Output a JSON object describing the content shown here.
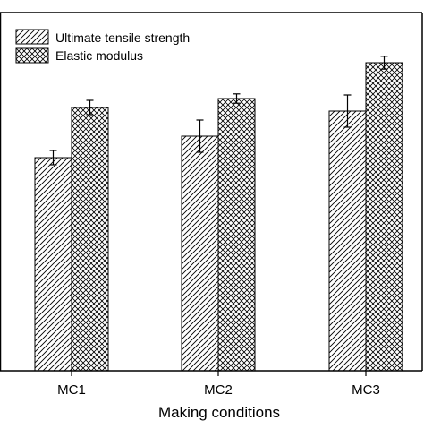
{
  "chart_data": {
    "type": "bar",
    "categories": [
      "MC1",
      "MC2",
      "MC3"
    ],
    "series": [
      {
        "name": "Ultimate tensile strength",
        "values": [
          59.5,
          65.5,
          72.5
        ],
        "error": [
          2.0,
          4.5,
          4.5
        ],
        "pattern": "diagonal-hatch"
      },
      {
        "name": "Elastic modulus",
        "values": [
          73.5,
          76.0,
          86.0
        ],
        "error": [
          2.0,
          1.3,
          1.8
        ],
        "pattern": "crosshatch"
      }
    ],
    "title": "",
    "xlabel": "Making conditions",
    "ylabel": "",
    "ylim": [
      0,
      100
    ],
    "legend_position": "top-left",
    "grid": false,
    "colors": {
      "bar_fill": "#ffffff",
      "hatch": "#000000",
      "axis": "#000000"
    }
  }
}
